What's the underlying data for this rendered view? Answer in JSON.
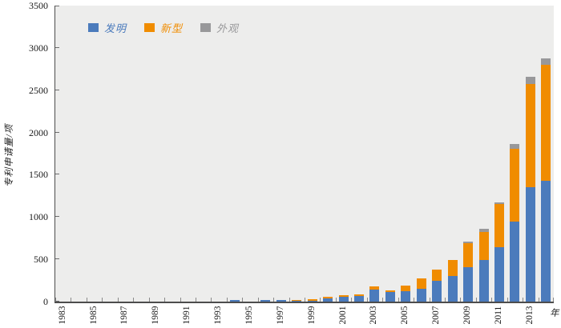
{
  "chart_data": {
    "type": "bar",
    "stacked": true,
    "title": "",
    "ylabel": "专利申请量/项",
    "xlabel": "年",
    "ylim": [
      0,
      3500
    ],
    "ytick_step": 500,
    "xtick_label_every": 2,
    "legend_position": "top-left",
    "grid": false,
    "plot_background": "#ededec",
    "axis_color": "#4d4d4d",
    "categories": [
      1983,
      1984,
      1985,
      1986,
      1987,
      1988,
      1989,
      1990,
      1991,
      1992,
      1993,
      1994,
      1995,
      1996,
      1997,
      1998,
      1999,
      2000,
      2001,
      2002,
      2003,
      2004,
      2005,
      2006,
      2007,
      2008,
      2009,
      2010,
      2011,
      2012,
      2013,
      2014
    ],
    "series": [
      {
        "name": "发明",
        "color": "#4b7bbc",
        "values": [
          0,
          0,
          0,
          0,
          0,
          0,
          0,
          0,
          0,
          0,
          0,
          15,
          0,
          18,
          18,
          5,
          14,
          35,
          60,
          70,
          140,
          110,
          125,
          150,
          245,
          300,
          410,
          490,
          640,
          945,
          1350,
          1430
        ]
      },
      {
        "name": "新型",
        "color": "#f08c00",
        "values": [
          0,
          0,
          0,
          0,
          0,
          0,
          0,
          0,
          0,
          0,
          0,
          0,
          0,
          0,
          0,
          15,
          18,
          20,
          18,
          20,
          42,
          25,
          65,
          120,
          130,
          195,
          285,
          330,
          510,
          865,
          1225,
          1370
        ]
      },
      {
        "name": "外观",
        "color": "#98989a",
        "values": [
          0,
          0,
          0,
          0,
          0,
          0,
          0,
          0,
          0,
          0,
          0,
          0,
          0,
          0,
          0,
          0,
          0,
          0,
          0,
          0,
          0,
          0,
          0,
          0,
          0,
          0,
          10,
          40,
          20,
          55,
          80,
          75
        ]
      }
    ]
  }
}
